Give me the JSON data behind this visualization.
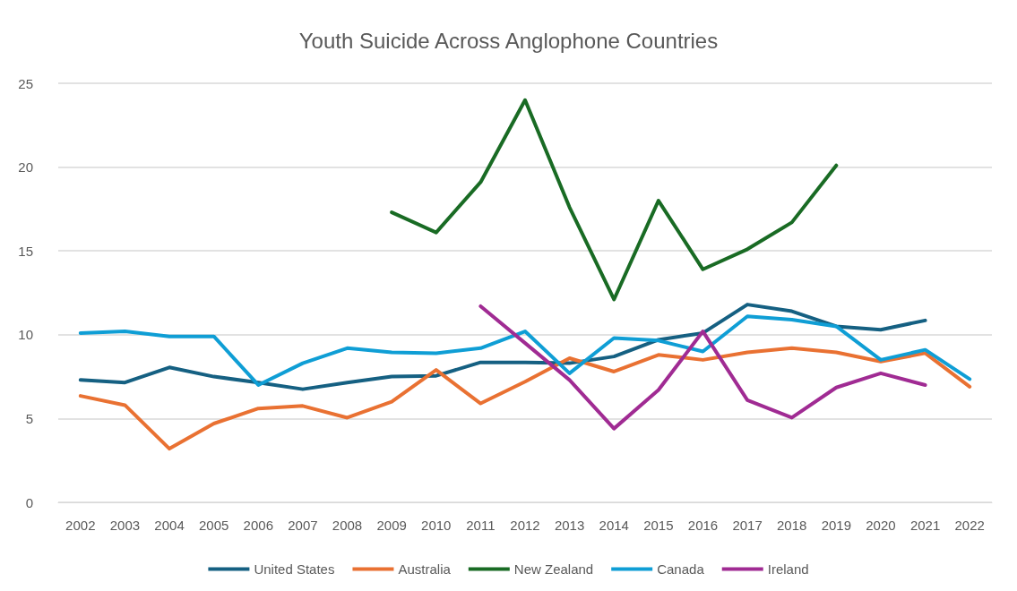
{
  "chart_data": {
    "type": "line",
    "title": "Youth Suicide Across Anglophone Countries",
    "categories": [
      "2002",
      "2003",
      "2004",
      "2005",
      "2006",
      "2007",
      "2008",
      "2009",
      "2010",
      "2011",
      "2012",
      "2013",
      "2014",
      "2015",
      "2016",
      "2017",
      "2018",
      "2019",
      "2020",
      "2021",
      "2022"
    ],
    "series": [
      {
        "name": "United States",
        "color": "#156082",
        "values": [
          7.3,
          7.15,
          8.05,
          7.5,
          7.15,
          6.75,
          7.15,
          7.5,
          7.55,
          8.35,
          8.35,
          8.3,
          8.7,
          9.7,
          10.1,
          11.8,
          11.4,
          10.5,
          10.3,
          10.85,
          null
        ]
      },
      {
        "name": "Australia",
        "color": "#e97132",
        "values": [
          6.35,
          5.8,
          3.2,
          4.7,
          5.6,
          5.75,
          5.05,
          6.0,
          7.9,
          5.9,
          7.2,
          8.6,
          7.8,
          8.8,
          8.5,
          8.95,
          9.2,
          8.95,
          8.4,
          8.9,
          6.9
        ]
      },
      {
        "name": "New Zealand",
        "color": "#196b24",
        "values": [
          null,
          null,
          null,
          null,
          null,
          null,
          null,
          17.3,
          16.1,
          19.1,
          24.0,
          17.6,
          12.1,
          18.0,
          13.9,
          15.1,
          16.7,
          20.1,
          null,
          null,
          null
        ]
      },
      {
        "name": "Canada",
        "color": "#0f9ed5",
        "values": [
          10.1,
          10.2,
          9.9,
          9.9,
          7.0,
          8.3,
          9.2,
          8.95,
          8.9,
          9.2,
          10.2,
          7.7,
          9.8,
          9.65,
          9.0,
          11.1,
          10.9,
          10.5,
          8.5,
          9.1,
          7.35
        ]
      },
      {
        "name": "Ireland",
        "color": "#a02b93",
        "values": [
          null,
          null,
          null,
          null,
          null,
          null,
          null,
          null,
          null,
          11.7,
          9.5,
          7.3,
          4.4,
          6.7,
          10.2,
          6.1,
          5.05,
          6.85,
          7.7,
          7.0,
          null
        ]
      }
    ],
    "ylim": [
      0,
      25
    ],
    "yticks": [
      0,
      5,
      10,
      15,
      20,
      25
    ],
    "grid": "y",
    "legend": "bottom",
    "marker": "none",
    "line_style": "solid"
  }
}
